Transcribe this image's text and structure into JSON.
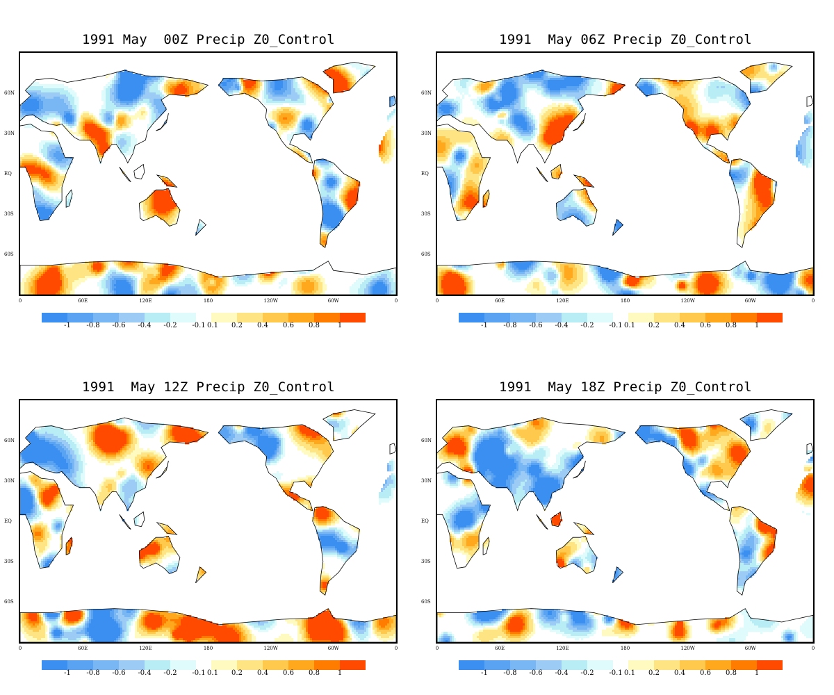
{
  "panels": [
    {
      "title": "1991 May  00Z Precip Z0_Control",
      "seed": 11
    },
    {
      "title": "1991  May 06Z Precip Z0_Control",
      "seed": 23
    },
    {
      "title": "1991  May 12Z Precip Z0_Control",
      "seed": 37
    },
    {
      "title": "1991  May 18Z Precip Z0_Control",
      "seed": 53
    }
  ],
  "lat_labels": [
    "60N",
    "30N",
    "EQ",
    "30S",
    "60S"
  ],
  "lat_values": [
    60,
    30,
    0,
    -30,
    -60
  ],
  "lon_labels": [
    "0",
    "60E",
    "120E",
    "180",
    "120W",
    "60W",
    "0"
  ],
  "lon_values": [
    0,
    60,
    120,
    180,
    240,
    300,
    360
  ],
  "colorbar": {
    "labels": [
      "-1",
      "-0.8",
      "-0.6",
      "-0.4",
      "-0.2",
      "-0.1",
      "0.1",
      "0.2",
      "0.4",
      "0.6",
      "0.8",
      "1"
    ],
    "negative_colors": [
      "#3b8ff0",
      "#5aa2f2",
      "#78b6f4",
      "#9ccbf6",
      "#b9edf6",
      "#e0fbfb"
    ],
    "positive_colors": [
      "#fffac0",
      "#ffe483",
      "#ffc94d",
      "#ffa81e",
      "#ff7c00",
      "#ff4a00"
    ]
  }
}
